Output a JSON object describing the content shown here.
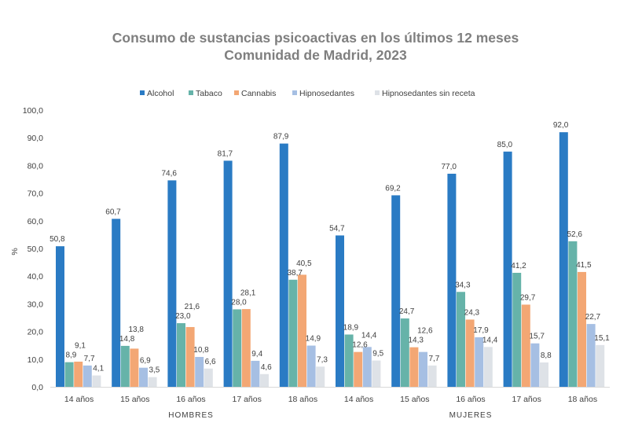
{
  "chart_data": {
    "type": "bar",
    "title": [
      "Consumo de sustancias psicoactivas en los últimos 12 meses",
      "Comunidad de Madrid, 2023"
    ],
    "ylabel": "%",
    "ylim": [
      0,
      100
    ],
    "yticks": [
      "0,0",
      "10,0",
      "20,0",
      "30,0",
      "40,0",
      "50,0",
      "60,0",
      "70,0",
      "80,0",
      "90,0",
      "100,0"
    ],
    "legend_position": "top",
    "grid": false,
    "categories": [
      "14 años",
      "15 años",
      "16 años",
      "17 años",
      "18 años",
      "14 años",
      "15 años",
      "16 años",
      "17 años",
      "18 años"
    ],
    "groups": [
      {
        "label": "HOMBRES"
      },
      {
        "label": "MUJERES"
      }
    ],
    "series": [
      {
        "name": "Alcohol",
        "color": "#2a7bc4",
        "values": [
          50.8,
          60.7,
          74.6,
          81.7,
          87.9,
          54.7,
          69.2,
          77.0,
          85.0,
          92.0
        ]
      },
      {
        "name": "Tabaco",
        "color": "#66b3a9",
        "values": [
          8.9,
          14.8,
          23.0,
          28.0,
          38.7,
          18.9,
          24.7,
          34.3,
          41.2,
          52.6
        ]
      },
      {
        "name": "Cannabis",
        "color": "#f3a774",
        "values": [
          9.1,
          13.8,
          21.6,
          28.1,
          40.5,
          12.6,
          14.3,
          24.3,
          29.7,
          41.5
        ]
      },
      {
        "name": "Hipnosedantes",
        "color": "#a6bfe3",
        "values": [
          7.7,
          6.9,
          10.8,
          9.4,
          14.9,
          14.4,
          12.6,
          17.9,
          15.7,
          22.7
        ]
      },
      {
        "name": "Hipnosedantes sin receta",
        "color": "#dee2e7",
        "values": [
          4.1,
          3.5,
          6.6,
          4.6,
          7.3,
          9.5,
          7.7,
          14.4,
          8.8,
          15.1
        ]
      }
    ]
  }
}
